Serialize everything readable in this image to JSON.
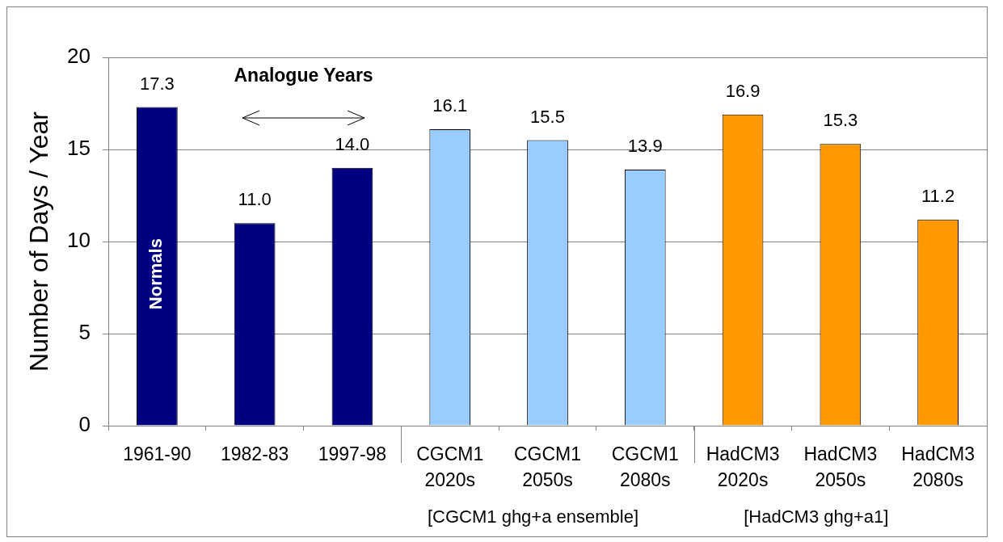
{
  "chart_data": {
    "type": "bar",
    "ylabel": "Number of Days / Year",
    "categories": [
      "1961-90",
      "1982-83",
      "1997-98",
      "CGCM1\n2020s",
      "CGCM1\n2050s",
      "CGCM1\n2080s",
      "HadCM3\n2020s",
      "HadCM3\n2050s",
      "HadCM3\n2080s"
    ],
    "values": [
      17.3,
      11.0,
      14.0,
      16.1,
      15.5,
      13.9,
      16.9,
      15.3,
      11.2
    ],
    "colors": [
      "#000080",
      "#000080",
      "#000080",
      "#99ccff",
      "#99ccff",
      "#99ccff",
      "#ff9900",
      "#ff9900",
      "#ff9900"
    ],
    "value_labels": [
      "17.3",
      "11.0",
      "14.0",
      "16.1",
      "15.5",
      "13.9",
      "16.9",
      "15.3",
      "11.2"
    ],
    "ylim": [
      0,
      20
    ],
    "yticks": [
      0,
      5,
      10,
      15,
      20
    ],
    "grid": "y",
    "annotations": [
      "Analogue Years",
      "Normals",
      "[CGCM1 ghg+a ensemble]",
      "[HadCM3 ghg+a1]"
    ]
  }
}
